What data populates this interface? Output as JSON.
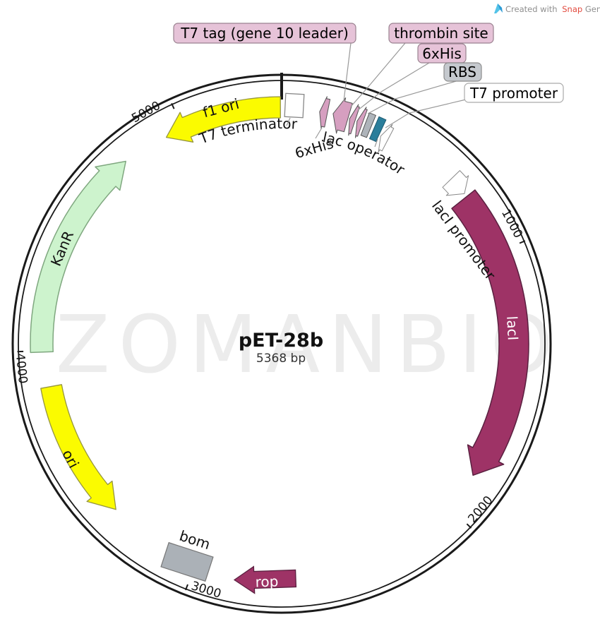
{
  "credit": {
    "created": "Created with",
    "snap": "Snap",
    "gene": "Gene",
    "registered": "®"
  },
  "watermark": "ZOMANBIO",
  "plasmid": {
    "name": "pET-28b",
    "size_label": "5368 bp"
  },
  "ticks": [
    "1000",
    "2000",
    "3000",
    "4000",
    "5000"
  ],
  "callouts": {
    "t7_tag": {
      "label": "T7 tag (gene 10 leader)",
      "bg": "#E6C3D8"
    },
    "thrombin": {
      "label": "thrombin site",
      "bg": "#E6C3D8"
    },
    "his6_top": {
      "label": "6xHis",
      "bg": "#E6C3D8"
    },
    "rbs": {
      "label": "RBS",
      "bg": "#C5C9CE"
    },
    "t7_promoter": {
      "label": "T7 promoter",
      "bg": "#FFFFFF"
    }
  },
  "curved_labels": {
    "t7_terminator": "T7 terminator",
    "his6_upstream": "6xHis",
    "lac_operator": "lac operator",
    "laci_promoter": "lacI promoter",
    "bom": "bom"
  },
  "band_labels": {
    "laci": "lacI",
    "kanr": "KanR",
    "ori": "ori",
    "f1_ori": "f1 ori",
    "rop": "rop"
  },
  "colors": {
    "magenta": "#9E3366",
    "yellow": "#FBFB00",
    "green": "#CDF3CD",
    "pink": "#D69FC0",
    "gray_feature": "#AEB4BA",
    "teal": "#2B7E9B",
    "ring": "#1A1A1A",
    "leader": "#999999",
    "watermark": "#ECECEC",
    "snap_red": "#E2493D",
    "credit_gray": "#8F8F8F",
    "logo_blue": "#53C3E8"
  }
}
